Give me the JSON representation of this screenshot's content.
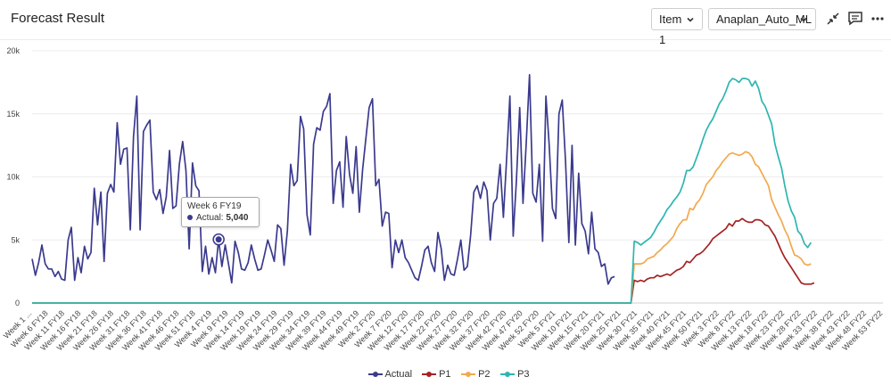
{
  "header": {
    "title": "Forecast Result",
    "item_select": "Item 1",
    "model_select": "Anaplan_Auto_ML",
    "icons": [
      "collapse-icon",
      "comment-icon",
      "more-icon"
    ]
  },
  "tooltip": {
    "label": "Week 6 FY19",
    "series": "Actual:",
    "value": "5,040"
  },
  "chart_data": {
    "type": "line",
    "ylim": [
      0,
      20000
    ],
    "yticks": [
      0,
      5000,
      10000,
      15000,
      20000
    ],
    "ytick_labels": [
      "0",
      "5k",
      "10k",
      "15k",
      "20k"
    ],
    "x_visible_labels": [
      "Week 1 ...",
      "Week 6 FY18",
      "Week 11 FY18",
      "Week 16 FY18",
      "Week 21 FY18",
      "Week 26 FY18",
      "Week 31 FY18",
      "Week 36 FY18",
      "Week 41 FY18",
      "Week 46 FY18",
      "Week 51 FY18",
      "Week 4 FY19",
      "Week 9 FY19",
      "Week 14 FY19",
      "Week 19 FY19",
      "Week 24 FY19",
      "Week 29 FY19",
      "Week 34 FY19",
      "Week 39 FY19",
      "Week 44 FY19",
      "Week 49 FY19",
      "Week 2 FY20",
      "Week 7 FY20",
      "Week 12 FY20",
      "Week 17 FY20",
      "Week 22 FY20",
      "Week 27 FY20",
      "Week 32 FY20",
      "Week 37 FY20",
      "Week 42 FY20",
      "Week 47 FY20",
      "Week 52 FY20",
      "Week 5 FY21",
      "Week 10 FY21",
      "Week 15 FY21",
      "Week 20 FY21",
      "Week 25 FY21",
      "Week 30 FY21",
      "Week 35 FY21",
      "Week 40 FY21",
      "Week 45 FY21",
      "Week 50 FY21",
      "Week 3 FY22",
      "Week 8 FY22",
      "Week 13 FY22",
      "Week 18 FY22",
      "Week 23 FY22",
      "Week 28 FY22",
      "Week 33 FY22",
      "Week 38 FY22",
      "Week 43 FY22",
      "Week 48 FY22",
      "Week 53 FY22"
    ],
    "label_every": 5,
    "n_points": 261,
    "grid": true,
    "legend_position": "bottom",
    "series": [
      {
        "name": "Actual",
        "color": "#3b3a8e",
        "start_index": 0,
        "values": [
          3500,
          2200,
          3200,
          4600,
          3100,
          2700,
          2700,
          2100,
          2500,
          1900,
          1800,
          5000,
          6000,
          1800,
          3600,
          2400,
          4500,
          3500,
          4000,
          9100,
          6200,
          8800,
          3300,
          8700,
          9400,
          8800,
          14300,
          11000,
          12200,
          12300,
          5800,
          13200,
          16400,
          5800,
          13600,
          14100,
          14500,
          8800,
          8200,
          9000,
          7100,
          8400,
          12100,
          7500,
          7700,
          11000,
          12800,
          10500,
          4300,
          11100,
          9300,
          8900,
          2500,
          4500,
          2300,
          3600,
          2400,
          5040,
          2900,
          4600,
          3100,
          1600,
          4900,
          4000,
          2700,
          2600,
          3200,
          4600,
          3500,
          2600,
          2700,
          3800,
          5000,
          4200,
          3300,
          6200,
          5900,
          3000,
          5700,
          11000,
          9300,
          9700,
          14800,
          13800,
          7000,
          5400,
          12600,
          13900,
          13700,
          15200,
          15600,
          16600,
          7900,
          10500,
          11200,
          7600,
          13200,
          10200,
          8700,
          12400,
          7200,
          10600,
          13100,
          15500,
          16200,
          9300,
          9800,
          6100,
          7200,
          7100,
          2800,
          5000,
          4000,
          5000,
          3600,
          3200,
          2600,
          2000,
          1800,
          2900,
          4200,
          4500,
          3200,
          2500,
          5600,
          4300,
          1800,
          3000,
          2300,
          2200,
          3500,
          5000,
          2600,
          2900,
          5400,
          8800,
          9300,
          8300,
          9600,
          8900,
          5000,
          7900,
          8300,
          11000,
          6800,
          11400,
          16400,
          5300,
          9700,
          15500,
          7900,
          12800,
          18100,
          8700,
          8000,
          11000,
          4900,
          16400,
          12600,
          7500,
          6700,
          15000,
          16100,
          11200,
          4800,
          12500,
          4600,
          10300,
          6300,
          5700,
          3900,
          7200,
          4300,
          4000,
          2900,
          3100,
          1500,
          2000,
          2100
        ]
      },
      {
        "name": "P1",
        "color": "#a42323",
        "start_index": 184,
        "values": [
          1800,
          1700,
          1800,
          1700,
          1900,
          2000,
          2000,
          2200,
          2100,
          2200,
          2300,
          2200,
          2400,
          2600,
          2700,
          2900,
          3300,
          3200,
          3500,
          3800,
          3900,
          4100,
          4400,
          4700,
          5100,
          5300,
          5500,
          5700,
          5900,
          6300,
          6100,
          6500,
          6500,
          6700,
          6500,
          6400,
          6400,
          6600,
          6600,
          6500,
          6200,
          6100,
          5700,
          5300,
          4700,
          4100,
          3600,
          3200,
          2800,
          2400,
          2000,
          1600,
          1500,
          1500,
          1500,
          1600
        ]
      },
      {
        "name": "P2",
        "color": "#f2a94e",
        "start_index": 184,
        "values": [
          3100,
          3100,
          3100,
          3200,
          3500,
          3600,
          3700,
          4000,
          4200,
          4500,
          4700,
          5000,
          5300,
          5900,
          6300,
          6600,
          6600,
          7500,
          7400,
          7900,
          8200,
          8700,
          9400,
          9700,
          10000,
          10500,
          10800,
          11200,
          11500,
          11800,
          11900,
          11800,
          11700,
          11800,
          12000,
          11900,
          11600,
          11000,
          10800,
          10300,
          9800,
          9300,
          8200,
          7600,
          7000,
          6500,
          5800,
          5300,
          4500,
          3800,
          3700,
          3500,
          3100,
          3000,
          3100
        ]
      },
      {
        "name": "P3",
        "color": "#2fb5b0",
        "start_index": 184,
        "values": [
          4900,
          4800,
          4600,
          4800,
          5000,
          5200,
          5600,
          6100,
          6500,
          6900,
          7400,
          7700,
          8100,
          8400,
          8800,
          9500,
          10500,
          10500,
          10800,
          11500,
          12200,
          13000,
          13700,
          14200,
          14600,
          15200,
          15800,
          16200,
          16800,
          17500,
          17800,
          17700,
          17500,
          17800,
          17800,
          17700,
          17200,
          17600,
          17000,
          16000,
          15600,
          14900,
          14200,
          12600,
          11600,
          10700,
          9300,
          8100,
          7300,
          6800,
          5700,
          5400,
          4700,
          4400,
          4800
        ]
      }
    ]
  },
  "legend": [
    {
      "name": "Actual",
      "color": "#3b3a8e"
    },
    {
      "name": "P1",
      "color": "#a42323"
    },
    {
      "name": "P2",
      "color": "#f2a94e"
    },
    {
      "name": "P3",
      "color": "#2fb5b0"
    }
  ]
}
